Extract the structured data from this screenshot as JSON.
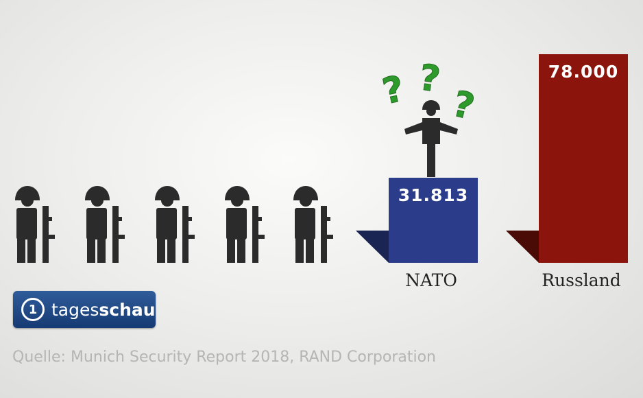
{
  "chart_data": {
    "type": "bar",
    "categories": [
      "NATO",
      "Russland"
    ],
    "values": [
      31813,
      78000
    ],
    "value_labels": [
      "31.813",
      "78.000"
    ],
    "colors": [
      "#2b3c8a",
      "#8b150d"
    ],
    "shadow_colors": [
      "#1b2554",
      "#4a0a05"
    ],
    "ylim": [
      0,
      78000
    ],
    "grid": false,
    "legend": "none"
  },
  "question_marks": [
    "?",
    "?",
    "?"
  ],
  "colors": {
    "soldier": "#2b2b2b",
    "question_mark": "#2f9a2c"
  },
  "branding": {
    "logo_mark": "1",
    "logo_text_a": "tages",
    "logo_text_b": "schau"
  },
  "source": "Quelle: Munich Security Report 2018, RAND Corporation"
}
